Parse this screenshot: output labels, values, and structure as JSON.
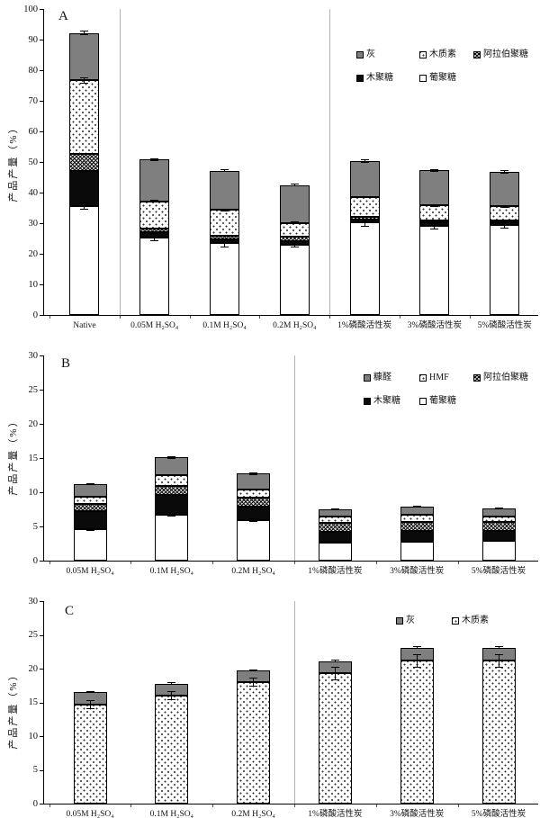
{
  "figure": {
    "ylabel": "产品产量（%）",
    "background": "#ffffff",
    "pattern_colors": {
      "gray": "#7f7f7f",
      "black": "#0a0a0a",
      "white": "#ffffff",
      "dot_ink": "#333333"
    }
  },
  "chart_data": [
    {
      "type": "bar",
      "stacked": true,
      "panel": "A",
      "title": "",
      "xlabel": "",
      "ylabel": "产品产量（%）",
      "ylim": [
        0,
        100
      ],
      "yticks": [
        0,
        10,
        20,
        30,
        40,
        50,
        60,
        70,
        80,
        90,
        100
      ],
      "grid": false,
      "legend_position": "top-right-inside",
      "categories": [
        "Native",
        "0.05M H₂SO₄",
        "0.1M H₂SO₄",
        "0.2M H₂SO₄",
        "1%磷酸活性炭",
        "3%磷酸活性炭",
        "5%磷酸活性炭"
      ],
      "series": [
        {
          "key": "glucan",
          "name": "葡聚糖",
          "pattern": "white",
          "values": [
            35.6,
            25.4,
            23.5,
            23.0,
            30.2,
            29.0,
            29.3
          ]
        },
        {
          "key": "xylan",
          "name": "木聚糖",
          "pattern": "black",
          "values": [
            11.4,
            1.7,
            1.2,
            1.2,
            1.0,
            1.3,
            0.9
          ]
        },
        {
          "key": "arabinan",
          "name": "阿拉伯聚糖",
          "pattern": "cross",
          "values": [
            5.7,
            1.1,
            1.2,
            1.4,
            0.8,
            0.6,
            0.6
          ]
        },
        {
          "key": "lignin",
          "name": "木质素",
          "pattern": "dots",
          "values": [
            24.0,
            9.0,
            8.4,
            4.5,
            6.5,
            5.0,
            4.7
          ]
        },
        {
          "key": "ash",
          "name": "灰",
          "pattern": "gray",
          "values": [
            15.5,
            13.6,
            12.9,
            12.4,
            11.8,
            11.4,
            11.3
          ]
        }
      ],
      "legend_rows": [
        [
          {
            "label": "灰",
            "pattern": "gray"
          },
          {
            "label": "木质素",
            "pattern": "dots"
          },
          {
            "label": "阿拉伯聚糖",
            "pattern": "cross"
          }
        ],
        [
          {
            "label": "木聚糖",
            "pattern": "black"
          },
          {
            "label": "葡聚糖",
            "pattern": "white"
          }
        ]
      ],
      "error_bars": [
        [
          [
            35.6,
            1.2
          ],
          [
            76.7,
            1.0
          ],
          [
            92.2,
            0.8
          ]
        ],
        [
          [
            25.4,
            1.4
          ],
          [
            37.2,
            0.5
          ],
          [
            50.8,
            0.5
          ]
        ],
        [
          [
            23.5,
            1.4
          ],
          [
            34.3,
            0.5
          ],
          [
            47.2,
            0.4
          ]
        ],
        [
          [
            23.0,
            1.0
          ],
          [
            30.1,
            0.4
          ],
          [
            42.5,
            0.4
          ]
        ],
        [
          [
            30.2,
            1.4
          ],
          [
            38.5,
            0.4
          ],
          [
            50.3,
            0.7
          ]
        ],
        [
          [
            29.0,
            1.0
          ],
          [
            35.8,
            0.4
          ],
          [
            47.3,
            0.4
          ]
        ],
        [
          [
            29.3,
            1.2
          ],
          [
            35.5,
            0.4
          ],
          [
            46.8,
            0.5
          ]
        ]
      ],
      "dividers_after": [
        0,
        3
      ]
    },
    {
      "type": "bar",
      "stacked": true,
      "panel": "B",
      "title": "",
      "xlabel": "",
      "ylabel": "产品产量（%）",
      "ylim": [
        0,
        30
      ],
      "yticks": [
        0,
        5,
        10,
        15,
        20,
        25,
        30
      ],
      "grid": false,
      "legend_position": "top-right-inside",
      "categories": [
        "0.05M H₂SO₄",
        "0.1M H₂SO₄",
        "0.2M H₂SO₄",
        "1%磷酸活性炭",
        "3%磷酸活性炭",
        "5%磷酸活性炭"
      ],
      "series": [
        {
          "key": "glucan",
          "name": "葡聚糖",
          "pattern": "white",
          "values": [
            4.6,
            6.7,
            5.9,
            2.6,
            2.8,
            2.9
          ]
        },
        {
          "key": "xylan",
          "name": "木聚糖",
          "pattern": "black",
          "values": [
            2.6,
            2.9,
            2.0,
            1.6,
            1.6,
            1.5
          ]
        },
        {
          "key": "arabinan",
          "name": "阿拉伯聚糖",
          "pattern": "cross",
          "values": [
            1.1,
            1.3,
            1.3,
            1.3,
            1.3,
            1.2
          ]
        },
        {
          "key": "hmf",
          "name": "HMF",
          "pattern": "dots",
          "values": [
            1.1,
            1.6,
            1.2,
            0.9,
            1.0,
            0.9
          ]
        },
        {
          "key": "furfural",
          "name": "糠醛",
          "pattern": "gray",
          "values": [
            1.8,
            2.6,
            2.3,
            1.1,
            1.2,
            1.1
          ]
        }
      ],
      "legend_rows": [
        [
          {
            "label": "糠醛",
            "pattern": "gray"
          },
          {
            "label": "HMF",
            "pattern": "dots"
          },
          {
            "label": "阿拉伯聚糖",
            "pattern": "cross"
          }
        ],
        [
          {
            "label": "木聚糖",
            "pattern": "black"
          },
          {
            "label": "葡聚糖",
            "pattern": "white"
          }
        ]
      ],
      "error_bars": [
        [
          [
            4.6,
            0.2
          ],
          [
            11.2,
            0.15
          ]
        ],
        [
          [
            6.7,
            0.2
          ],
          [
            15.1,
            0.2
          ]
        ],
        [
          [
            5.9,
            0.3
          ],
          [
            12.7,
            0.15
          ]
        ],
        [
          [
            2.6,
            0.15
          ],
          [
            7.5,
            0.15
          ]
        ],
        [
          [
            2.8,
            0.15
          ],
          [
            7.9,
            0.15
          ]
        ],
        [
          [
            2.9,
            0.15
          ],
          [
            7.6,
            0.15
          ]
        ]
      ],
      "dividers_after": [
        2
      ]
    },
    {
      "type": "bar",
      "stacked": true,
      "panel": "C",
      "title": "",
      "xlabel": "",
      "ylabel": "产品产量（%）",
      "ylim": [
        0,
        30
      ],
      "yticks": [
        0,
        5,
        10,
        15,
        20,
        25,
        30
      ],
      "grid": false,
      "legend_position": "top-right-inside",
      "categories": [
        "0.05M H₂SO₄",
        "0.1M H₂SO₄",
        "0.2M H₂SO₄",
        "1%磷酸活性炭",
        "3%磷酸活性炭",
        "5%磷酸活性炭"
      ],
      "series": [
        {
          "key": "lignin",
          "name": "木质素",
          "pattern": "dots",
          "values": [
            14.7,
            16.0,
            18.0,
            19.3,
            21.2,
            21.2
          ]
        },
        {
          "key": "ash",
          "name": "灰",
          "pattern": "gray",
          "values": [
            1.8,
            1.8,
            1.7,
            1.8,
            1.9,
            1.9
          ]
        }
      ],
      "legend_rows": [
        [
          {
            "label": "灰",
            "pattern": "gray"
          },
          {
            "label": "木质素",
            "pattern": "dots"
          }
        ]
      ],
      "error_bars": [
        [
          [
            14.7,
            0.7
          ],
          [
            16.5,
            0.15
          ]
        ],
        [
          [
            16.0,
            0.7
          ],
          [
            17.8,
            0.15
          ]
        ],
        [
          [
            18.0,
            0.7
          ],
          [
            19.7,
            0.15
          ]
        ],
        [
          [
            19.3,
            1.0
          ],
          [
            21.1,
            0.2
          ]
        ],
        [
          [
            21.2,
            1.0
          ],
          [
            23.1,
            0.2
          ]
        ],
        [
          [
            21.2,
            1.0
          ],
          [
            23.1,
            0.2
          ]
        ]
      ],
      "dividers_after": [
        2
      ]
    }
  ]
}
